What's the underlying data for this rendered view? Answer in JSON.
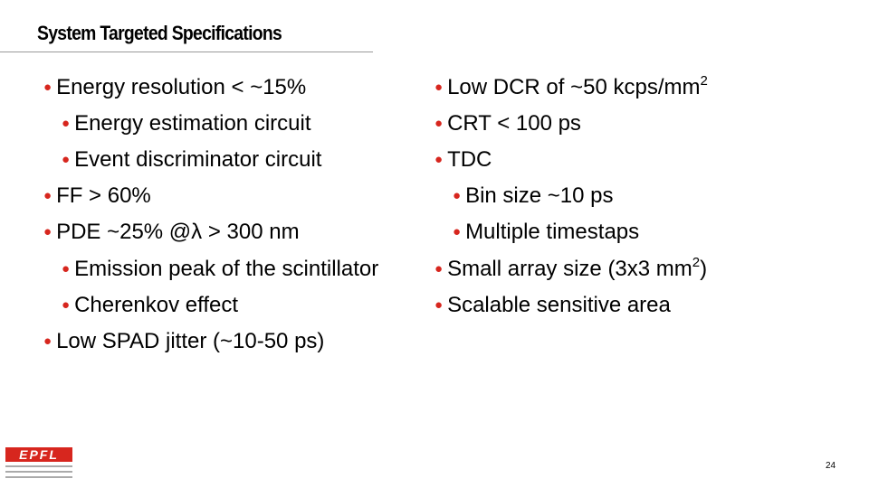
{
  "header": {
    "title": "System Targeted Specifications"
  },
  "left": [
    {
      "text": "Energy resolution  < ~15%"
    },
    {
      "text": "Energy estimation circuit"
    },
    {
      "text": "Event discriminator circuit"
    },
    {
      "text": "FF > 60%"
    },
    {
      "text": "PDE ~25% @λ > 300 nm"
    },
    {
      "text": "Emission peak of the scintillator"
    },
    {
      "text": "Cherenkov effect"
    },
    {
      "text": "Low SPAD jitter (~10-50 ps)"
    }
  ],
  "right": [
    {
      "text": "Low DCR of ~50 kcps/mm",
      "sup": "2"
    },
    {
      "text": "CRT  < 100 ps"
    },
    {
      "text": "TDC"
    },
    {
      "text": "Bin size ~10 ps"
    },
    {
      "text": "Multiple timestaps"
    },
    {
      "text": "Small array size (3x3 mm",
      "sup": "2",
      "after": ")"
    },
    {
      "text": "Scalable sensitive area"
    }
  ],
  "footer": {
    "logo": "EPFL",
    "page": "24"
  }
}
